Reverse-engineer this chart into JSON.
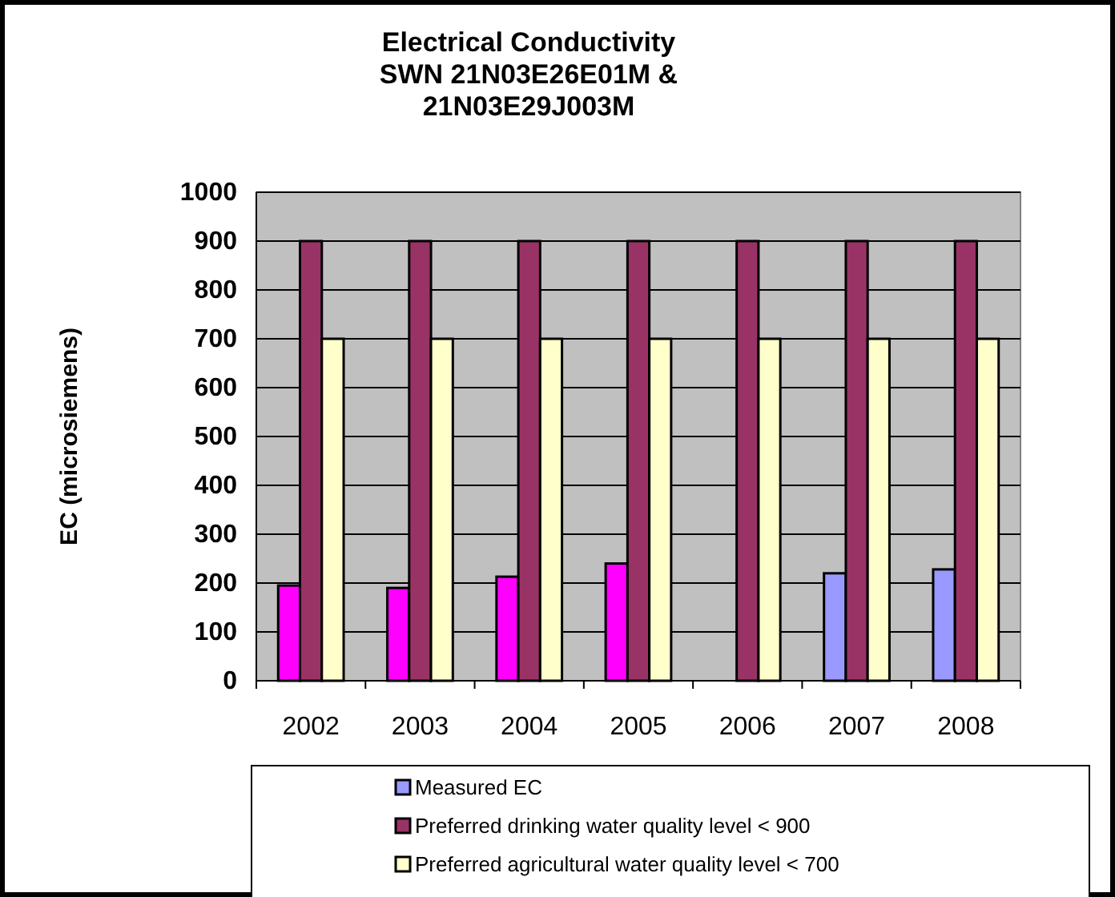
{
  "chart_data": {
    "type": "bar",
    "title": "Electrical Conductivity\nSWN 21N03E26E01M &\n21N03E29J003M",
    "ylabel": "EC (microsiemens)",
    "categories": [
      "2002",
      "2003",
      "2004",
      "2005",
      "2006",
      "2007",
      "2008"
    ],
    "series": [
      {
        "name": "Measured EC",
        "color": "#9999ff",
        "colors": [
          "#ff00ff",
          "#ff00ff",
          "#ff00ff",
          "#ff00ff",
          null,
          "#9999ff",
          "#9999ff"
        ],
        "values": [
          195,
          190,
          213,
          240,
          null,
          220,
          228
        ]
      },
      {
        "name": "Preferred drinking water quality level < 900",
        "color": "#993366",
        "values": [
          900,
          900,
          900,
          900,
          900,
          900,
          900
        ]
      },
      {
        "name": "Preferred agricultural water quality level < 700",
        "color": "#ffffcc",
        "values": [
          700,
          700,
          700,
          700,
          700,
          700,
          700
        ]
      }
    ],
    "ylim": [
      0,
      1000
    ],
    "yticks": [
      0,
      100,
      200,
      300,
      400,
      500,
      600,
      700,
      800,
      900,
      1000
    ],
    "grid": "y",
    "legend": "bottom"
  }
}
